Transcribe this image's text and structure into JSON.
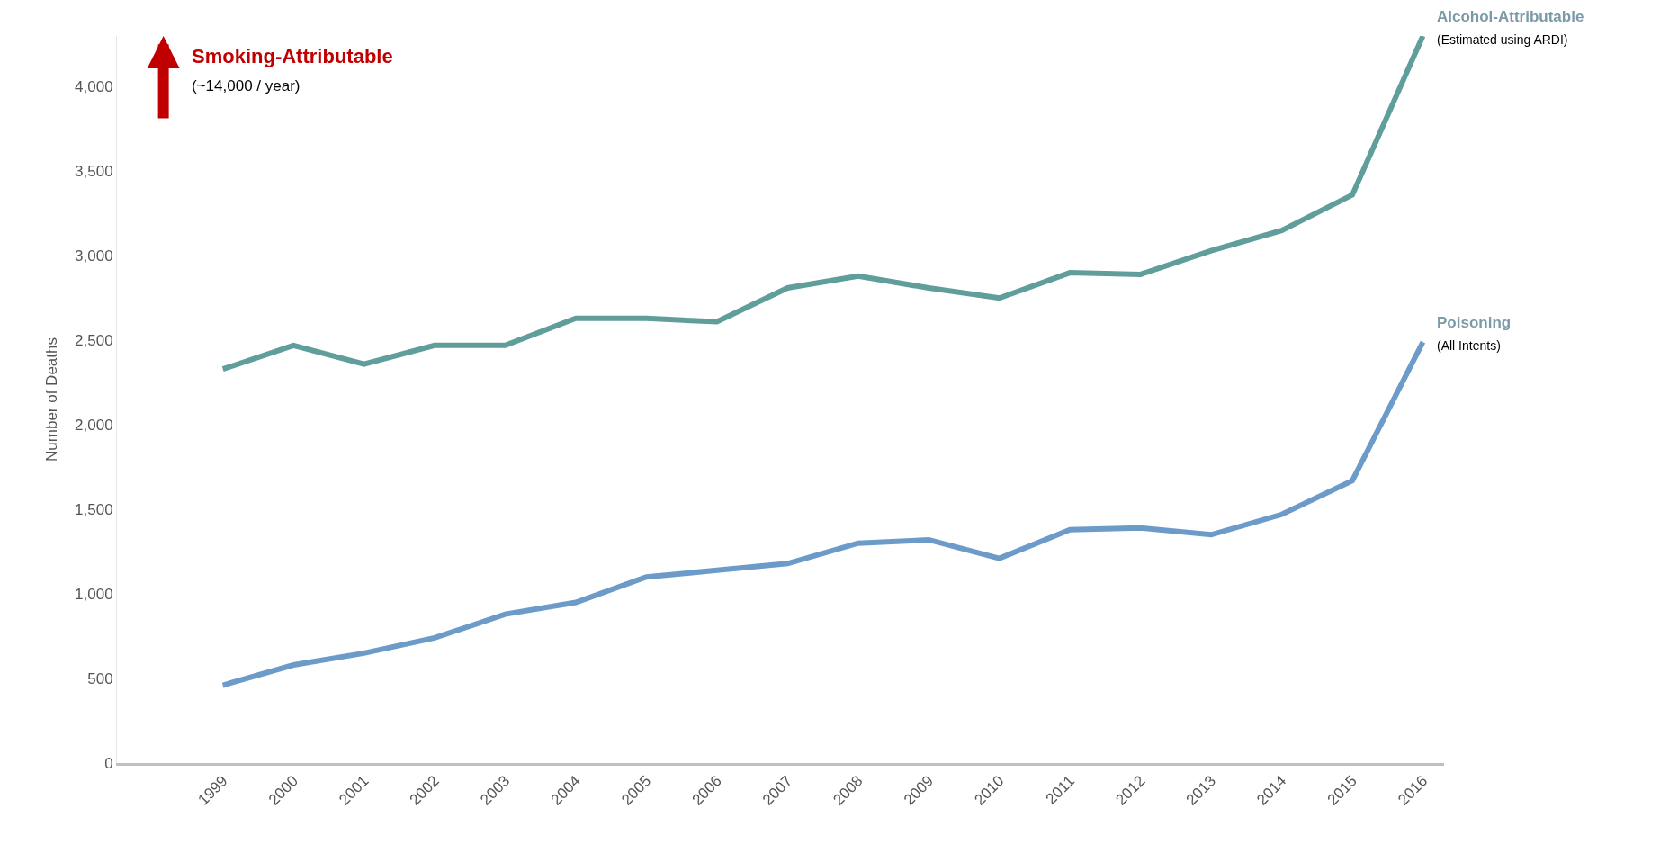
{
  "chart_data": {
    "type": "line",
    "ylabel": "Number of Deaths",
    "categories": [
      "1999",
      "2000",
      "2001",
      "2002",
      "2003",
      "2004",
      "2005",
      "2006",
      "2007",
      "2008",
      "2009",
      "2010",
      "2011",
      "2012",
      "2013",
      "2014",
      "2015",
      "2016"
    ],
    "series": [
      {
        "name": "Alcohol-Attributable",
        "color": "#5f9e9a",
        "values": [
          2330,
          2470,
          2360,
          2470,
          2470,
          2630,
          2630,
          2610,
          2810,
          2880,
          2810,
          2750,
          2900,
          2890,
          3030,
          3150,
          3360,
          4300
        ]
      },
      {
        "name": "Poisoning",
        "color": "#6c9bc9",
        "values": [
          460,
          580,
          650,
          740,
          880,
          950,
          1100,
          1140,
          1180,
          1300,
          1320,
          1210,
          1380,
          1390,
          1350,
          1470,
          1670,
          2490
        ]
      }
    ],
    "ylim": [
      0,
      4300
    ],
    "yticks": [
      {
        "value": 0,
        "label": "0"
      },
      {
        "value": 500,
        "label": "500"
      },
      {
        "value": 1000,
        "label": "1,000"
      },
      {
        "value": 1500,
        "label": "1,500"
      },
      {
        "value": 2000,
        "label": "2,000"
      },
      {
        "value": 2500,
        "label": "2,500"
      },
      {
        "value": 3000,
        "label": "3,000"
      },
      {
        "value": 3500,
        "label": "3,500"
      },
      {
        "value": 4000,
        "label": "4,000"
      }
    ],
    "grid": false,
    "legend": false,
    "marker": "none",
    "line_style": "solid",
    "annotations": [
      "Smoking-Attributable",
      "(~14,000 / year)",
      {
        "text": "(Estimated using ARDI)",
        "x": "2016",
        "y": 4300
      },
      {
        "text": "(All Intents)",
        "x": "2016",
        "y": 2490
      }
    ]
  }
}
